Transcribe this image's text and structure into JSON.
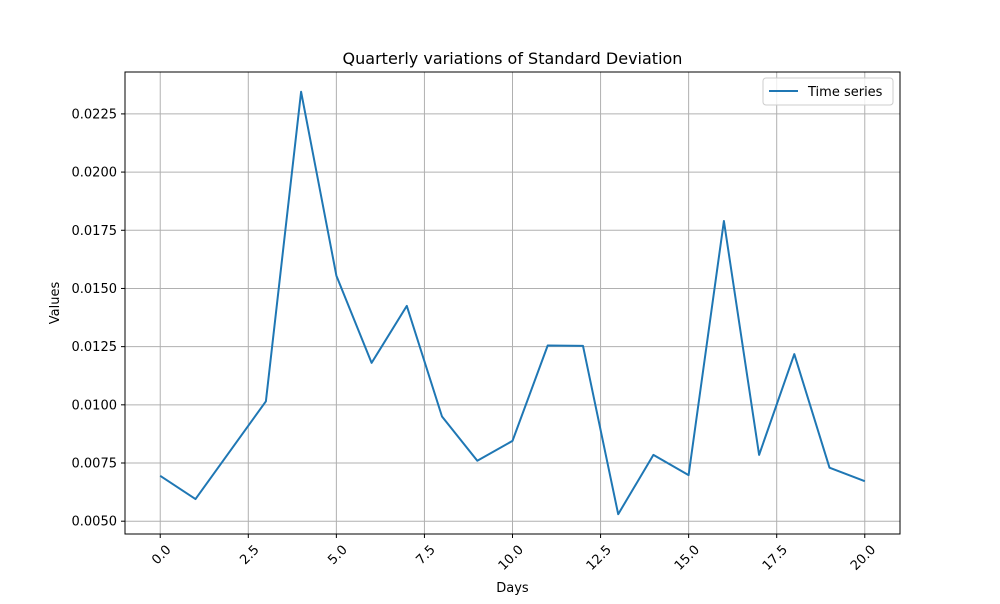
{
  "chart_data": {
    "type": "line",
    "title": "Quarterly variations of  Standard Deviation",
    "xlabel": "Days",
    "ylabel": "Values",
    "xlim": [
      -1,
      21
    ],
    "ylim": [
      0.00445,
      0.0243
    ],
    "grid": true,
    "legend_position": "top-right",
    "x_ticks": [
      0,
      2.5,
      5,
      7.5,
      10,
      12.5,
      15,
      17.5,
      20
    ],
    "x_tick_labels": [
      "0.0",
      "2.5",
      "5.0",
      "7.5",
      "10.0",
      "12.5",
      "15.0",
      "17.5",
      "20.0"
    ],
    "y_ticks": [
      0.005,
      0.0075,
      0.01,
      0.0125,
      0.015,
      0.0175,
      0.02,
      0.0225
    ],
    "y_tick_labels": [
      "0.0050",
      "0.0075",
      "0.0100",
      "0.0125",
      "0.0150",
      "0.0175",
      "0.0200",
      "0.0225"
    ],
    "series": [
      {
        "name": "Time series",
        "color": "#1f77b4",
        "x": [
          0,
          1,
          2,
          3,
          4,
          5,
          6,
          7,
          8,
          9,
          10,
          11,
          12,
          13,
          14,
          15,
          16,
          17,
          18,
          19,
          20
        ],
        "y": [
          0.00695,
          0.00595,
          0.00805,
          0.01015,
          0.02345,
          0.01555,
          0.0118,
          0.01425,
          0.0095,
          0.0076,
          0.00845,
          0.01255,
          0.01253,
          0.0053,
          0.00785,
          0.00698,
          0.0179,
          0.00785,
          0.01218,
          0.0073,
          0.00672
        ]
      }
    ]
  }
}
